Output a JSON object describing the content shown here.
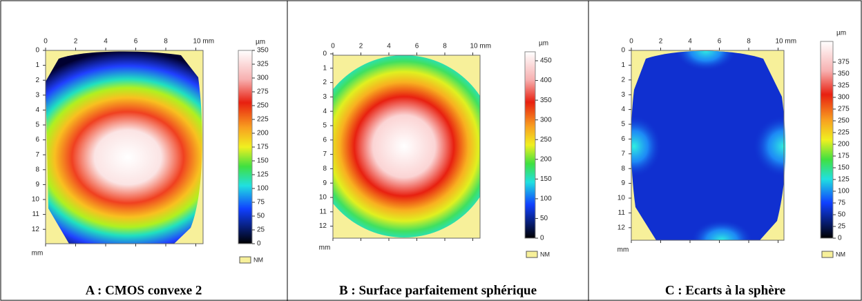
{
  "panels": [
    {
      "caption": "A : CMOS convexe 2",
      "x_tick_labels": [
        "0",
        "2",
        "4",
        "6",
        "8",
        "10 mm"
      ],
      "y_tick_labels": [
        0,
        1,
        2,
        3,
        4,
        5,
        6,
        7,
        8,
        9,
        10,
        11,
        12
      ],
      "axis_unit": "mm",
      "colorbar_unit": "µm",
      "colorbar_ticks": [
        0,
        25,
        50,
        75,
        100,
        125,
        150,
        175,
        200,
        225,
        250,
        275,
        300,
        325,
        350
      ],
      "no_measure_label": "NM"
    },
    {
      "caption": "B : Surface parfaitement sphérique",
      "x_tick_labels": [
        "0",
        "2",
        "4",
        "6",
        "8",
        "10 mm"
      ],
      "y_tick_labels": [
        0,
        1,
        2,
        3,
        4,
        5,
        6,
        7,
        8,
        9,
        10,
        11,
        12
      ],
      "axis_unit": "mm",
      "colorbar_unit": "µm",
      "colorbar_ticks": [
        0,
        50,
        100,
        150,
        200,
        250,
        300,
        350,
        400,
        450
      ],
      "no_measure_label": "NM"
    },
    {
      "caption": "C : Ecarts à la sphère",
      "x_tick_labels": [
        "0",
        "2",
        "4",
        "6",
        "8",
        "10 mm"
      ],
      "y_tick_labels": [
        0,
        1,
        2,
        3,
        4,
        5,
        6,
        7,
        8,
        9,
        10,
        11,
        12
      ],
      "axis_unit": "mm",
      "colorbar_unit": "µm",
      "colorbar_ticks": [
        0,
        25,
        50,
        75,
        100,
        125,
        150,
        175,
        200,
        225,
        250,
        275,
        300,
        325,
        350,
        375
      ],
      "no_measure_label": "NM"
    }
  ]
}
